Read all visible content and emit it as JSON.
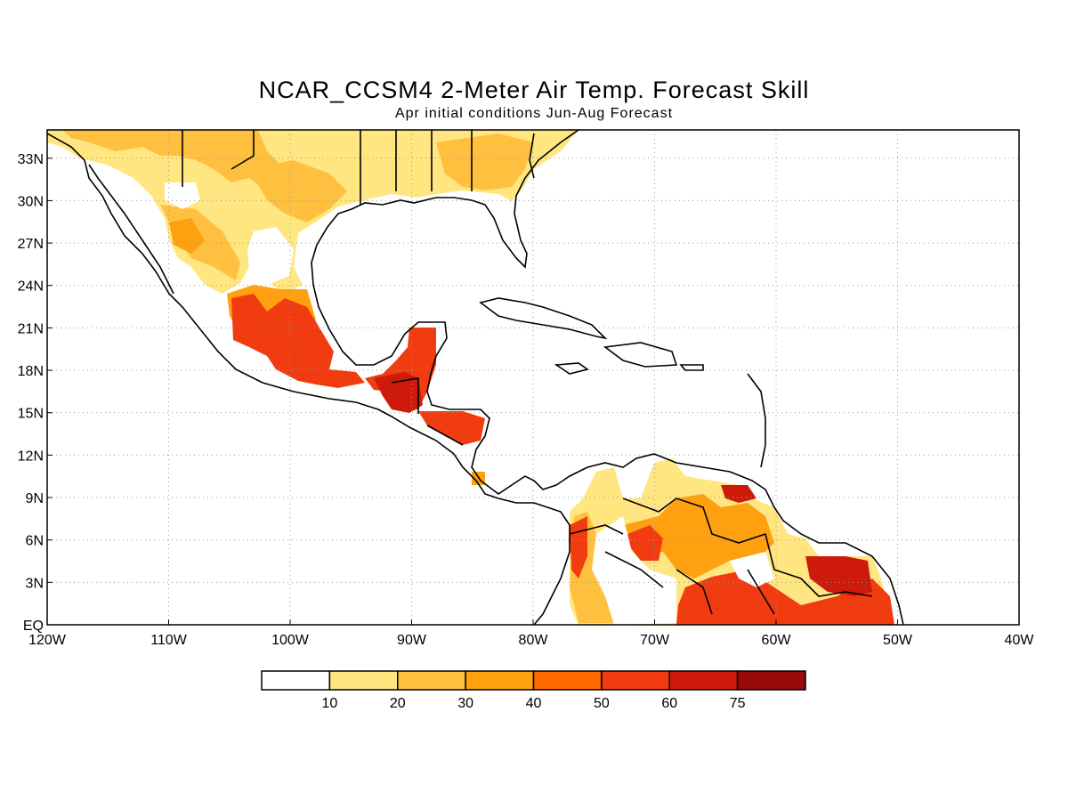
{
  "title": "NCAR_CCSM4 2-Meter Air Temp. Forecast Skill",
  "subtitle": "Apr initial conditions  Jun-Aug Forecast",
  "map": {
    "lon_range": [
      -120,
      -40
    ],
    "lat_range": [
      0,
      35
    ],
    "grid": "dotted",
    "x_ticks": [
      "120W",
      "110W",
      "100W",
      "90W",
      "80W",
      "70W",
      "60W",
      "50W",
      "40W"
    ],
    "y_ticks": [
      "EQ",
      "3N",
      "6N",
      "9N",
      "12N",
      "15N",
      "18N",
      "21N",
      "24N",
      "27N",
      "30N",
      "33N"
    ]
  },
  "legend": {
    "colors": [
      "#ffffff",
      "#ffe680",
      "#ffc040",
      "#ffa010",
      "#ff6a00",
      "#f03c10",
      "#cd1a0a",
      "#9a0a0a"
    ],
    "labels": [
      "10",
      "20",
      "30",
      "40",
      "50",
      "60",
      "75"
    ]
  }
}
